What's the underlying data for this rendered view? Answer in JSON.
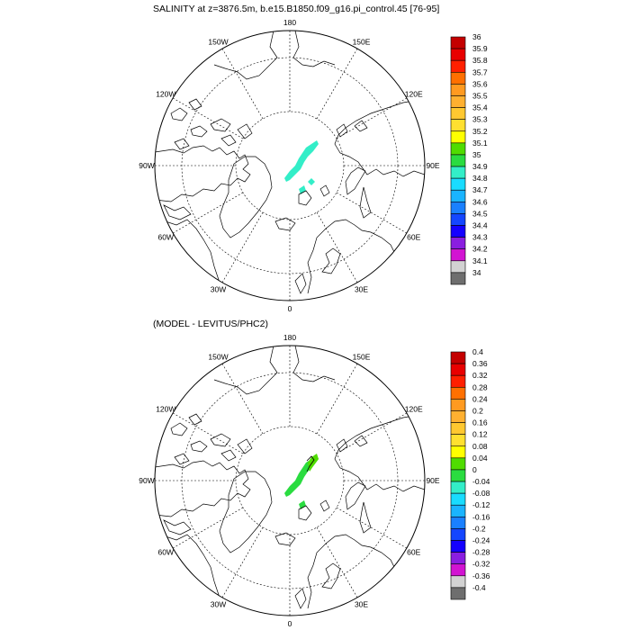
{
  "panels": [
    {
      "id": "salinity",
      "title": "SALINITY at z=3876.5m, b.e15.B1850.f09_g16.pi_control.45 [76-95]",
      "lon_labels": [
        "180",
        "150E",
        "120E",
        "90E",
        "60E",
        "30E",
        "0",
        "30W",
        "60W",
        "90W",
        "120W",
        "150W"
      ],
      "colorbar": {
        "labels": [
          "36",
          "35.9",
          "35.8",
          "35.7",
          "35.6",
          "35.5",
          "35.4",
          "35.3",
          "35.2",
          "35.1",
          "35",
          "34.9",
          "34.8",
          "34.7",
          "34.6",
          "34.5",
          "34.4",
          "34.3",
          "34.2",
          "34.1",
          "34"
        ],
        "colors": [
          "#c40000",
          "#e80000",
          "#ff2000",
          "#ff7000",
          "#ff9a20",
          "#ffb030",
          "#ffc830",
          "#ffe030",
          "#ffff00",
          "#50dc00",
          "#2adc40",
          "#33eec8",
          "#19dcff",
          "#1ab4ff",
          "#1a80ff",
          "#1446ff",
          "#1400ff",
          "#8a1ee0",
          "#d214d2",
          "#d2d2d2",
          "#6e6e6e"
        ]
      },
      "field_color": "#33eec8"
    },
    {
      "id": "difference",
      "title": "(MODEL - LEVITUS/PHC2)",
      "lon_labels": [
        "180",
        "150E",
        "120E",
        "90E",
        "60E",
        "30E",
        "0",
        "30W",
        "60W",
        "90W",
        "120W",
        "150W"
      ],
      "colorbar": {
        "labels": [
          "0.4",
          "0.36",
          "0.32",
          "0.28",
          "0.24",
          "0.2",
          "0.16",
          "0.12",
          "0.08",
          "0.04",
          "0",
          "-0.04",
          "-0.08",
          "-0.12",
          "-0.16",
          "-0.2",
          "-0.24",
          "-0.28",
          "-0.32",
          "-0.36",
          "-0.4"
        ],
        "colors": [
          "#c40000",
          "#e80000",
          "#ff2000",
          "#ff7000",
          "#ff9a20",
          "#ffb030",
          "#ffc830",
          "#ffe030",
          "#ffff00",
          "#50dc00",
          "#2adc40",
          "#33eec8",
          "#19dcff",
          "#1ab4ff",
          "#1a80ff",
          "#1446ff",
          "#1400ff",
          "#8a1ee0",
          "#d214d2",
          "#d2d2d2",
          "#6e6e6e"
        ]
      },
      "field_color": "#2adc40",
      "field_accent_color": "#50dc00"
    }
  ]
}
